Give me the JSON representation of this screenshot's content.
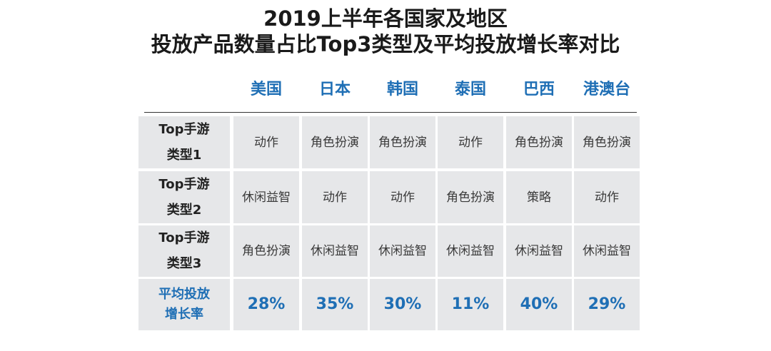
{
  "title_line1": "2019上半年各国家及地区",
  "title_line2": "投放产品数量占比Top3类型及平均投放增长率对比",
  "chart_data": {
    "type": "table",
    "columns": [
      "美国",
      "日本",
      "韩国",
      "泰国",
      "巴西",
      "港澳台"
    ],
    "rows": [
      {
        "label_line1": "Top手游",
        "label_line2": "类型1",
        "cells": [
          "动作",
          "角色扮演",
          "角色扮演",
          "动作",
          "角色扮演",
          "角色扮演"
        ]
      },
      {
        "label_line1": "Top手游",
        "label_line2": "类型2",
        "cells": [
          "休闲益智",
          "动作",
          "动作",
          "角色扮演",
          "策略",
          "动作"
        ]
      },
      {
        "label_line1": "Top手游",
        "label_line2": "类型3",
        "cells": [
          "角色扮演",
          "休闲益智",
          "休闲益智",
          "休闲益智",
          "休闲益智",
          "休闲益智"
        ]
      },
      {
        "label_line1": "平均投放",
        "label_line2": "增长率",
        "cells": [
          "28%",
          "35%",
          "30%",
          "11%",
          "40%",
          "29%"
        ]
      }
    ]
  },
  "colors": {
    "accent": "#1f6fb5",
    "cell_bg": "#e6e7e9",
    "text": "#3a3a3a"
  }
}
